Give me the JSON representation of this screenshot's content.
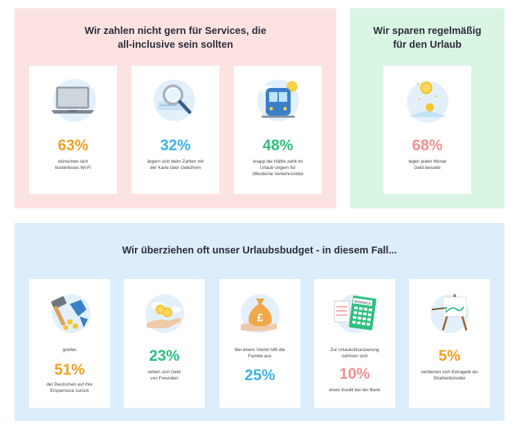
{
  "services_panel": {
    "heading_line1": "Wir zahlen nicht gern für Services, die",
    "heading_line2": "all-inclusive sein sollten",
    "cards": [
      {
        "value": "63%",
        "text_line1": "wünschen sich",
        "text_line2": "kostenloses Wi-Fi",
        "text_line3": "",
        "icon": "laptop-icon",
        "color": "#f0a020"
      },
      {
        "value": "32%",
        "text_line1": "ärgern sich beim Zahlen mit",
        "text_line2": "der Karte über Gebühren",
        "text_line3": "",
        "icon": "magnifier-card-icon",
        "color": "#3db2e6"
      },
      {
        "value": "48%",
        "text_line1": "knapp die Hälfte zahlt im",
        "text_line2": "Urlaub ungern für",
        "text_line3": "öffentliche Verkehrsmittel",
        "icon": "train-icon",
        "color": "#2dbe7d"
      }
    ]
  },
  "savings_panel": {
    "heading_line1": "Wir sparen regelmäßig",
    "heading_line2": "für den Urlaub",
    "card": {
      "value": "68%",
      "text_line1": "legen jeden Monat",
      "text_line2": "Geld beiseite",
      "icon": "falling-coins-icon",
      "color": "#ef8f91"
    }
  },
  "budget_panel": {
    "heading": "Wir überziehen oft unser Urlaubsbudget - in diesem Fall...",
    "cards": [
      {
        "pre_line1": "greifen",
        "pre_line2": "",
        "value": "51%",
        "text_line1": "der Deutschen auf ihre",
        "text_line2": "Ersparnisse zurück",
        "icon": "hammer-piggybank-icon",
        "color": "#f0a020"
      },
      {
        "pre_line1": "",
        "pre_line2": "",
        "value": "23%",
        "text_line1": "leihen sich Geld",
        "text_line2": "von Freunden",
        "icon": "hand-coins-icon",
        "color": "#2dbe7d"
      },
      {
        "pre_line1": "Bei einem Viertel hilft die",
        "pre_line2": "Familie aus",
        "value": "25%",
        "text_line1": "",
        "text_line2": "",
        "icon": "pound-moneybag-icon",
        "color": "#3db2e6"
      },
      {
        "pre_line1": "Zur Urlaubsfinanzierung",
        "pre_line2": "nehmen sich",
        "value": "10%",
        "text_line1": "einen Kredit bei der Bank",
        "text_line2": "",
        "icon": "calculator-icon",
        "color": "#ef8f91",
        "calc_display": "06669910"
      },
      {
        "pre_line1": "",
        "pre_line2": "",
        "value": "5%",
        "text_line1": "verdienen sich Extrageld als",
        "text_line2": "Straßenkünstler",
        "icon": "easel-icon",
        "color": "#f0a020"
      }
    ]
  },
  "chart_data": {
    "type": "table",
    "title": "",
    "groups": [
      {
        "heading": "Wir zahlen nicht gern für Services, die all-inclusive sein sollten",
        "items": [
          {
            "label": "wünschen sich kostenloses Wi-Fi",
            "value": 63,
            "unit": "%"
          },
          {
            "label": "ärgern sich beim Zahlen mit der Karte über Gebühren",
            "value": 32,
            "unit": "%"
          },
          {
            "label": "knapp die Hälfte zahlt im Urlaub ungern für öffentliche Verkehrsmittel",
            "value": 48,
            "unit": "%"
          }
        ]
      },
      {
        "heading": "Wir sparen regelmäßig für den Urlaub",
        "items": [
          {
            "label": "legen jeden Monat Geld beiseite",
            "value": 68,
            "unit": "%"
          }
        ]
      },
      {
        "heading": "Wir überziehen oft unser Urlaubsbudget - in diesem Fall...",
        "items": [
          {
            "label": "greifen der Deutschen auf ihre Ersparnisse zurück",
            "value": 51,
            "unit": "%"
          },
          {
            "label": "leihen sich Geld von Freunden",
            "value": 23,
            "unit": "%"
          },
          {
            "label": "Bei einem Viertel hilft die Familie aus",
            "value": 25,
            "unit": "%"
          },
          {
            "label": "Zur Urlaubsfinanzierung nehmen sich einen Kredit bei der Bank",
            "value": 10,
            "unit": "%"
          },
          {
            "label": "verdienen sich Extrageld als Straßenkünstler",
            "value": 5,
            "unit": "%"
          }
        ]
      }
    ]
  }
}
